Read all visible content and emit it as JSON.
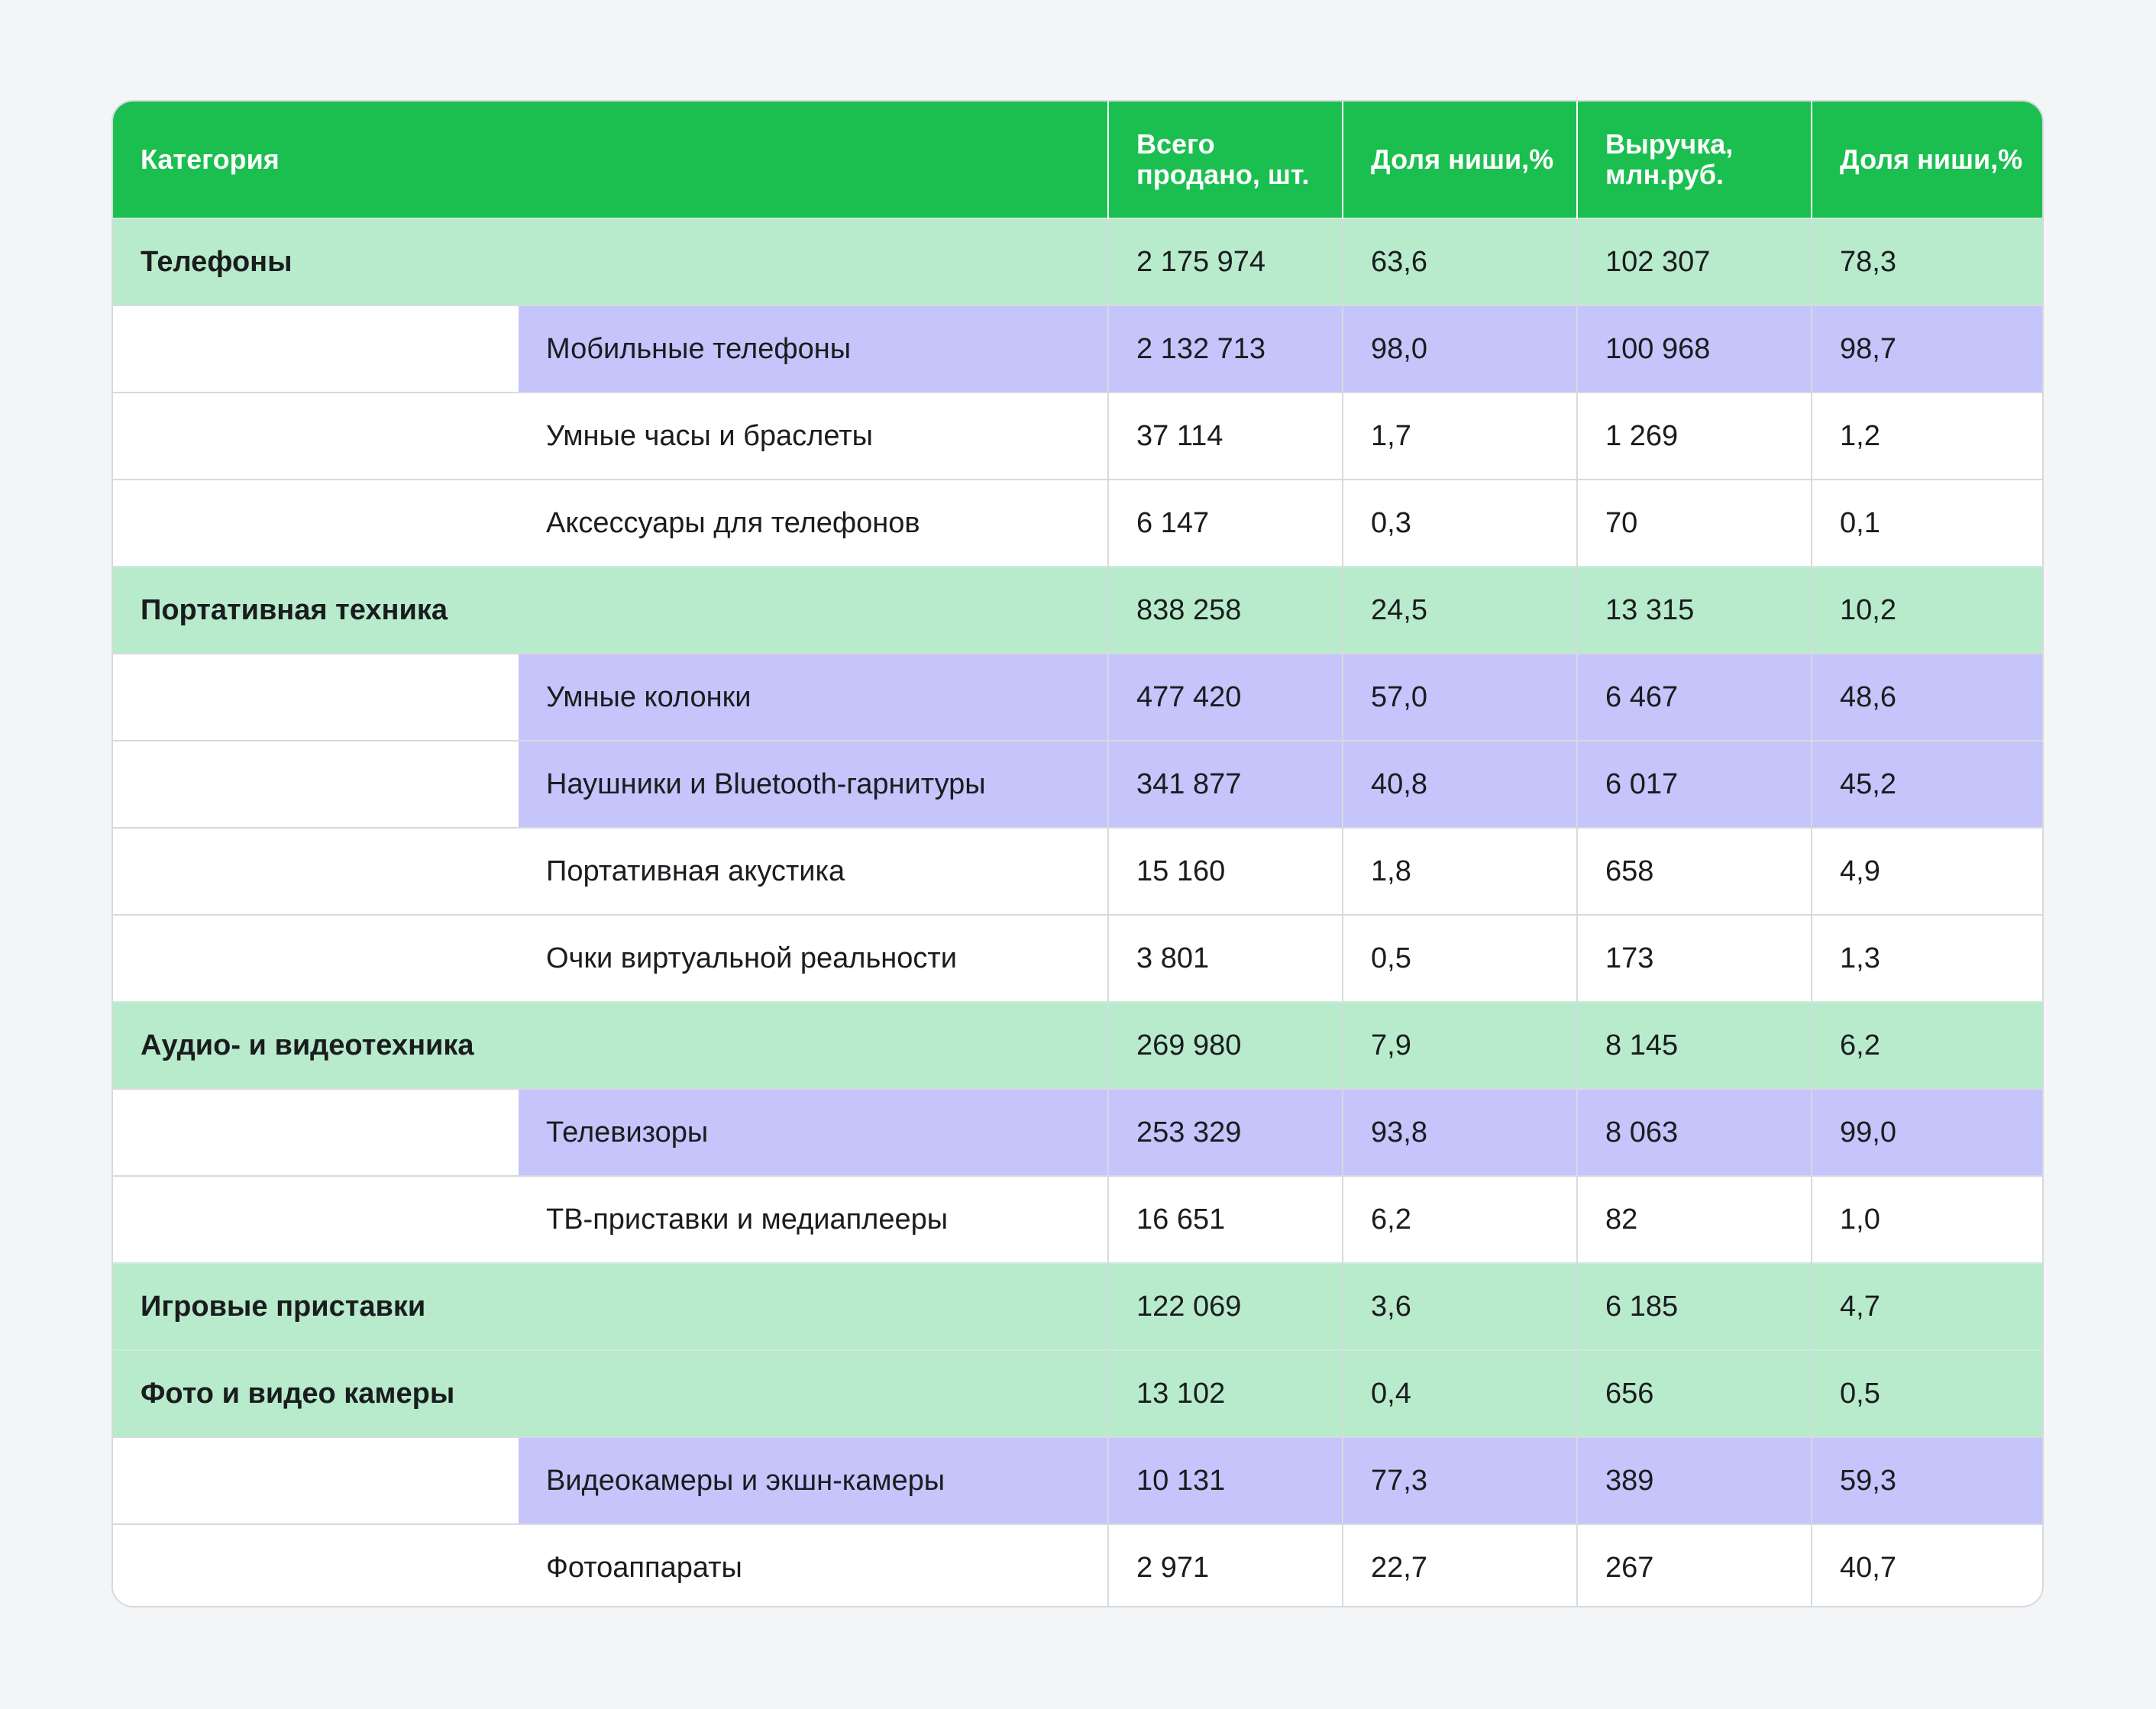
{
  "header": {
    "category": "Категория",
    "total_sold": "Всего продано, шт.",
    "niche_share_units": "Доля ниши,%",
    "revenue": "Выручка, млн.руб.",
    "niche_share_revenue": "Доля ниши,%"
  },
  "rows": [
    {
      "type": "category",
      "name": "Телефоны",
      "sold": "2 175 974",
      "share_units": "63,6",
      "revenue": "102 307",
      "share_revenue": "78,3"
    },
    {
      "type": "sub",
      "highlight": true,
      "name": "Мобильные телефоны",
      "sold": "2 132 713",
      "share_units": "98,0",
      "revenue": "100 968",
      "share_revenue": "98,7"
    },
    {
      "type": "sub",
      "highlight": false,
      "name": "Умные часы и браслеты",
      "sold": "37 114",
      "share_units": "1,7",
      "revenue": "1 269",
      "share_revenue": "1,2"
    },
    {
      "type": "sub",
      "highlight": false,
      "name": "Аксессуары для телефонов",
      "sold": "6 147",
      "share_units": "0,3",
      "revenue": "70",
      "share_revenue": "0,1"
    },
    {
      "type": "category",
      "name": "Портативная техника",
      "sold": "838 258",
      "share_units": "24,5",
      "revenue": "13 315",
      "share_revenue": "10,2"
    },
    {
      "type": "sub",
      "highlight": true,
      "name": "Умные колонки",
      "sold": "477 420",
      "share_units": "57,0",
      "revenue": "6 467",
      "share_revenue": "48,6"
    },
    {
      "type": "sub",
      "highlight": true,
      "name": "Наушники и Bluetooth-гарнитуры",
      "sold": "341 877",
      "share_units": "40,8",
      "revenue": "6 017",
      "share_revenue": "45,2"
    },
    {
      "type": "sub",
      "highlight": false,
      "name": "Портативная акустика",
      "sold": "15 160",
      "share_units": "1,8",
      "revenue": "658",
      "share_revenue": "4,9"
    },
    {
      "type": "sub",
      "highlight": false,
      "name": "Очки виртуальной реальности",
      "sold": "3 801",
      "share_units": "0,5",
      "revenue": "173",
      "share_revenue": "1,3"
    },
    {
      "type": "category",
      "name": "Аудио- и видеотехника",
      "sold": "269 980",
      "share_units": "7,9",
      "revenue": "8 145",
      "share_revenue": "6,2"
    },
    {
      "type": "sub",
      "highlight": true,
      "name": "Телевизоры",
      "sold": "253 329",
      "share_units": "93,8",
      "revenue": "8 063",
      "share_revenue": "99,0"
    },
    {
      "type": "sub",
      "highlight": false,
      "name": "ТВ-приставки и медиаплееры",
      "sold": "16 651",
      "share_units": "6,2",
      "revenue": "82",
      "share_revenue": "1,0"
    },
    {
      "type": "category",
      "name": "Игровые приставки",
      "sold": "122 069",
      "share_units": "3,6",
      "revenue": "6 185",
      "share_revenue": "4,7"
    },
    {
      "type": "category",
      "name": "Фото и видео камеры",
      "sold": "13 102",
      "share_units": "0,4",
      "revenue": "656",
      "share_revenue": "0,5"
    },
    {
      "type": "sub",
      "highlight": true,
      "name": "Видеокамеры и экшн-камеры",
      "sold": "10 131",
      "share_units": "77,3",
      "revenue": "389",
      "share_revenue": "59,3"
    },
    {
      "type": "sub",
      "highlight": false,
      "name": "Фотоаппараты",
      "sold": "2 971",
      "share_units": "22,7",
      "revenue": "267",
      "share_revenue": "40,7"
    }
  ],
  "colors": {
    "header_bg": "#1bbf50",
    "category_row_bg": "#b8ebcb",
    "highlight_row_bg": "#c5c4fb",
    "page_bg": "#f3f5f7"
  }
}
